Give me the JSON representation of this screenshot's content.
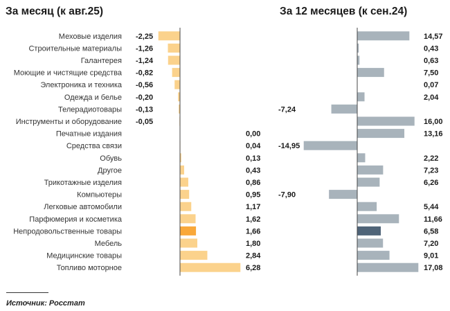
{
  "source": "Источник: Росстат",
  "colors": {
    "left_bar": "#fbd28c",
    "left_highlight": "#f9a83a",
    "right_bar": "#a8b3bb",
    "right_highlight": "#4f6478",
    "axis": "#444444"
  },
  "chart_data": [
    {
      "type": "bar",
      "orientation": "horizontal",
      "title": "За месяц (к авг.25)",
      "categories": [
        "Меховые изделия",
        "Строительные материалы",
        "Галантерея",
        "Моющие и чистящие средства",
        "Электроника и техника",
        "Одежда и белье",
        "Телерадиотовары",
        "Инструменты и оборудование",
        "Печатные издания",
        "Средства связи",
        "Обувь",
        "Другое",
        "Трикотажные изделия",
        "Компьютеры",
        "Легковые автомобили",
        "Парфюмерия и косметика",
        "Непродовольственные товары",
        "Мебель",
        "Медицинские товары",
        "Топливо моторное"
      ],
      "values": [
        -2.25,
        -1.26,
        -1.24,
        -0.82,
        -0.56,
        -0.2,
        -0.13,
        -0.05,
        0.0,
        0.04,
        0.13,
        0.43,
        0.86,
        0.95,
        1.17,
        1.62,
        1.66,
        1.8,
        2.84,
        6.28
      ],
      "labels": [
        "-2,25",
        "-1,26",
        "-1,24",
        "-0,82",
        "-0,56",
        "-0,20",
        "-0,13",
        "-0,05",
        "0,00",
        "0,04",
        "0,13",
        "0,43",
        "0,86",
        "0,95",
        "1,17",
        "1,62",
        "1,66",
        "1,80",
        "2,84",
        "6,28"
      ],
      "highlight": "Непродовольственные товары",
      "xlabel": "",
      "ylabel": "",
      "grid": false
    },
    {
      "type": "bar",
      "orientation": "horizontal",
      "title": "За 12 месяцев (к сен.24)",
      "categories": [
        "Меховые изделия",
        "Строительные материалы",
        "Галантерея",
        "Моющие и чистящие средства",
        "Электроника и техника",
        "Одежда и белье",
        "Телерадиотовары",
        "Инструменты и оборудование",
        "Печатные издания",
        "Средства связи",
        "Обувь",
        "Другое",
        "Трикотажные изделия",
        "Компьютеры",
        "Легковые автомобили",
        "Парфюмерия и косметика",
        "Непродовольственные товары",
        "Мебель",
        "Медицинские товары",
        "Топливо моторное"
      ],
      "values": [
        14.57,
        0.43,
        0.63,
        7.5,
        0.07,
        2.04,
        -7.24,
        16.0,
        13.16,
        -14.95,
        2.22,
        7.23,
        6.26,
        -7.9,
        5.44,
        11.66,
        6.58,
        7.2,
        9.01,
        17.08
      ],
      "labels": [
        "14,57",
        "0,43",
        "0,63",
        "7,50",
        "0,07",
        "2,04",
        "-7,24",
        "16,00",
        "13,16",
        "-14,95",
        "2,22",
        "7,23",
        "6,26",
        "-7,90",
        "5,44",
        "11,66",
        "6,58",
        "7,20",
        "9,01",
        "17,08"
      ],
      "highlight": "Непродовольственные товары",
      "xlabel": "",
      "ylabel": "",
      "grid": false
    }
  ]
}
